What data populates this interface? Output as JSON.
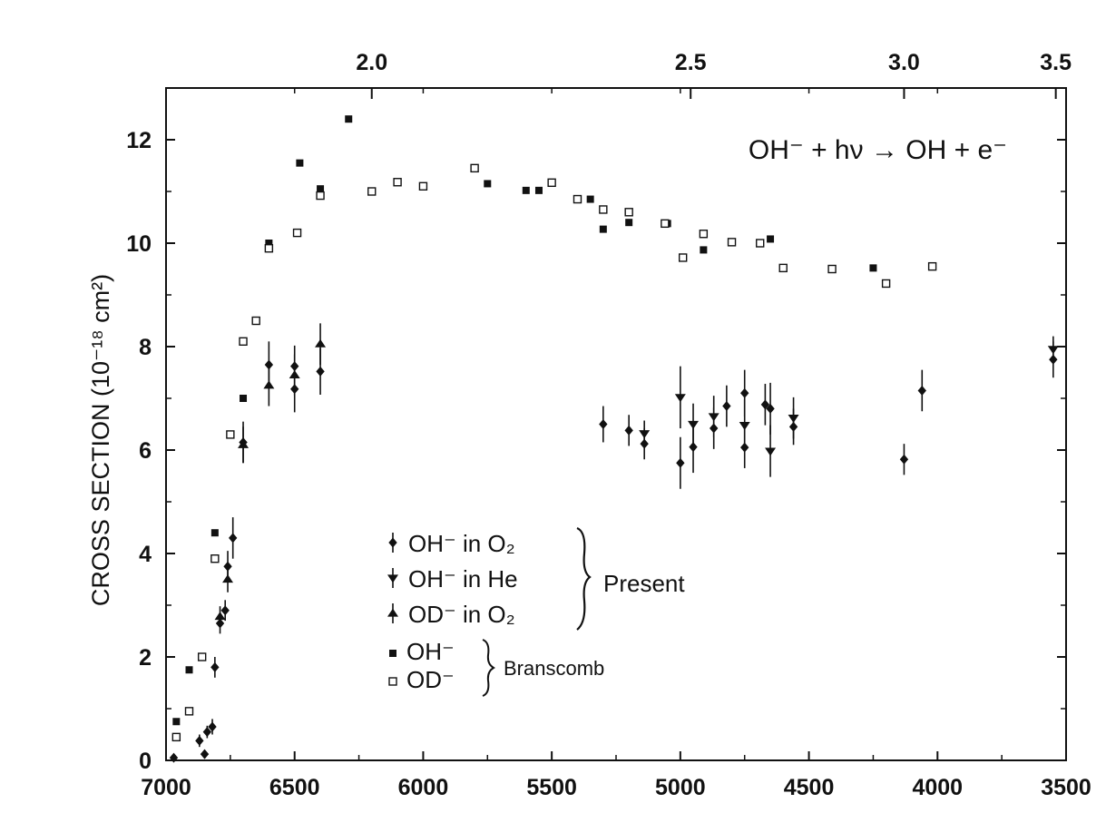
{
  "chart_data": {
    "type": "scatter",
    "title": "",
    "xlabel": "",
    "ylabel": "CROSS SECTION (10⁻¹⁸ cm²)",
    "xlim": [
      7000,
      3500
    ],
    "ylim": [
      0,
      13
    ],
    "x_ticks": [
      "7000",
      "6500",
      "6000",
      "5500",
      "5000",
      "4500",
      "4000",
      "3500"
    ],
    "x_tick_values": [
      7000,
      6500,
      6000,
      5500,
      5000,
      4500,
      4000,
      3500
    ],
    "y_ticks": [
      "0",
      "2",
      "4",
      "6",
      "8",
      "10",
      "12"
    ],
    "y_tick_values": [
      0,
      2,
      4,
      6,
      8,
      10,
      12
    ],
    "top_axis_ticks": [
      "2.0",
      "2.5",
      "3.0",
      "3.5"
    ],
    "top_axis_positions_data_units": [
      6200,
      4960,
      4130,
      3540
    ],
    "annotation": "OH⁻ + hν → OH + e⁻",
    "legend": {
      "items": [
        {
          "label": "OH⁻ in O₂",
          "marker": "diamond-errorbar",
          "group": "present"
        },
        {
          "label": "OH⁻ in He",
          "marker": "down-triangle-errorbar",
          "group": "present"
        },
        {
          "label": "OD⁻ in O₂",
          "marker": "up-triangle-errorbar",
          "group": "present"
        },
        {
          "label": "OH⁻",
          "marker": "filled-square",
          "group": "branscomb"
        },
        {
          "label": "OD⁻",
          "marker": "open-square",
          "group": "branscomb"
        }
      ],
      "group_labels": {
        "present": "Present",
        "branscomb": "Branscomb"
      }
    },
    "series": [
      {
        "name": "OH⁻ (Branscomb)",
        "marker": "filled-square",
        "points": [
          [
            6960,
            0.75
          ],
          [
            6910,
            1.75
          ],
          [
            6810,
            4.4
          ],
          [
            6700,
            7.0
          ],
          [
            6600,
            10.0
          ],
          [
            6480,
            11.55
          ],
          [
            6400,
            11.05
          ],
          [
            6290,
            12.4
          ],
          [
            5750,
            11.15
          ],
          [
            5600,
            11.02
          ],
          [
            5550,
            11.02
          ],
          [
            5350,
            10.85
          ],
          [
            5300,
            10.27
          ],
          [
            5200,
            10.4
          ],
          [
            5050,
            10.38
          ],
          [
            4910,
            9.87
          ],
          [
            4650,
            10.08
          ],
          [
            4250,
            9.52
          ]
        ]
      },
      {
        "name": "OD⁻ (Branscomb)",
        "marker": "open-square",
        "points": [
          [
            6960,
            0.45
          ],
          [
            6910,
            0.95
          ],
          [
            6860,
            2.0
          ],
          [
            6810,
            3.9
          ],
          [
            6750,
            6.3
          ],
          [
            6700,
            8.1
          ],
          [
            6650,
            8.5
          ],
          [
            6600,
            9.9
          ],
          [
            6490,
            10.2
          ],
          [
            6400,
            10.92
          ],
          [
            6200,
            11.0
          ],
          [
            6100,
            11.18
          ],
          [
            6000,
            11.1
          ],
          [
            5800,
            11.45
          ],
          [
            5500,
            11.17
          ],
          [
            5400,
            10.85
          ],
          [
            5300,
            10.65
          ],
          [
            5200,
            10.6
          ],
          [
            5060,
            10.38
          ],
          [
            4990,
            9.72
          ],
          [
            4910,
            10.18
          ],
          [
            4800,
            10.02
          ],
          [
            4690,
            10.0
          ],
          [
            4600,
            9.52
          ],
          [
            4410,
            9.5
          ],
          [
            4200,
            9.22
          ],
          [
            4020,
            9.55
          ]
        ]
      },
      {
        "name": "OH⁻ in O₂",
        "marker": "diamond",
        "points": [
          {
            "x": 6970,
            "y": 0.05,
            "err": 0.05
          },
          {
            "x": 6850,
            "y": 0.12,
            "err": 0.08
          },
          {
            "x": 6870,
            "y": 0.38,
            "err": 0.12
          },
          {
            "x": 6840,
            "y": 0.55,
            "err": 0.12
          },
          {
            "x": 6820,
            "y": 0.65,
            "err": 0.15
          },
          {
            "x": 6810,
            "y": 1.8,
            "err": 0.2
          },
          {
            "x": 6790,
            "y": 2.65,
            "err": 0.2
          },
          {
            "x": 6770,
            "y": 2.9,
            "err": 0.2
          },
          {
            "x": 6760,
            "y": 3.75,
            "err": 0.3
          },
          {
            "x": 6740,
            "y": 4.3,
            "err": 0.4
          },
          {
            "x": 6700,
            "y": 6.15,
            "err": 0.4
          },
          {
            "x": 6600,
            "y": 7.65,
            "err": 0.45
          },
          {
            "x": 6500,
            "y": 7.18,
            "err": 0.45
          },
          {
            "x": 6500,
            "y": 7.62,
            "err": 0.4
          },
          {
            "x": 6400,
            "y": 7.52,
            "err": 0.45
          },
          {
            "x": 5300,
            "y": 6.5,
            "err": 0.35
          },
          {
            "x": 5200,
            "y": 6.38,
            "err": 0.3
          },
          {
            "x": 5140,
            "y": 6.12,
            "err": 0.3
          },
          {
            "x": 5000,
            "y": 5.75,
            "err": 0.5
          },
          {
            "x": 4950,
            "y": 6.06,
            "err": 0.5
          },
          {
            "x": 4870,
            "y": 6.42,
            "err": 0.4
          },
          {
            "x": 4820,
            "y": 6.85,
            "err": 0.4
          },
          {
            "x": 4750,
            "y": 7.1,
            "err": 0.45
          },
          {
            "x": 4750,
            "y": 6.05,
            "err": 0.4
          },
          {
            "x": 4670,
            "y": 6.88,
            "err": 0.4
          },
          {
            "x": 4650,
            "y": 6.8,
            "err": 0.5
          },
          {
            "x": 4560,
            "y": 6.45,
            "err": 0.35
          },
          {
            "x": 4130,
            "y": 5.82,
            "err": 0.3
          },
          {
            "x": 4060,
            "y": 7.15,
            "err": 0.4
          },
          {
            "x": 3550,
            "y": 7.75,
            "err": 0.35
          }
        ]
      },
      {
        "name": "OH⁻ in He",
        "marker": "down-triangle",
        "points": [
          {
            "x": 5140,
            "y": 6.32,
            "err": 0.25
          },
          {
            "x": 5000,
            "y": 7.02,
            "err": 0.6
          },
          {
            "x": 4950,
            "y": 6.5,
            "err": 0.4
          },
          {
            "x": 4870,
            "y": 6.65,
            "err": 0.4
          },
          {
            "x": 4750,
            "y": 6.48,
            "err": 0.5
          },
          {
            "x": 4650,
            "y": 5.98,
            "err": 0.5
          },
          {
            "x": 4560,
            "y": 6.62,
            "err": 0.4
          },
          {
            "x": 3550,
            "y": 7.95,
            "err": 0.25
          }
        ]
      },
      {
        "name": "OD⁻ in O₂",
        "marker": "up-triangle",
        "points": [
          {
            "x": 6790,
            "y": 2.78,
            "err": 0.2
          },
          {
            "x": 6760,
            "y": 3.5,
            "err": 0.25
          },
          {
            "x": 6700,
            "y": 6.1,
            "err": 0.35
          },
          {
            "x": 6600,
            "y": 7.25,
            "err": 0.4
          },
          {
            "x": 6500,
            "y": 7.45,
            "err": 0.4
          },
          {
            "x": 6400,
            "y": 8.05,
            "err": 0.4
          }
        ]
      }
    ]
  }
}
